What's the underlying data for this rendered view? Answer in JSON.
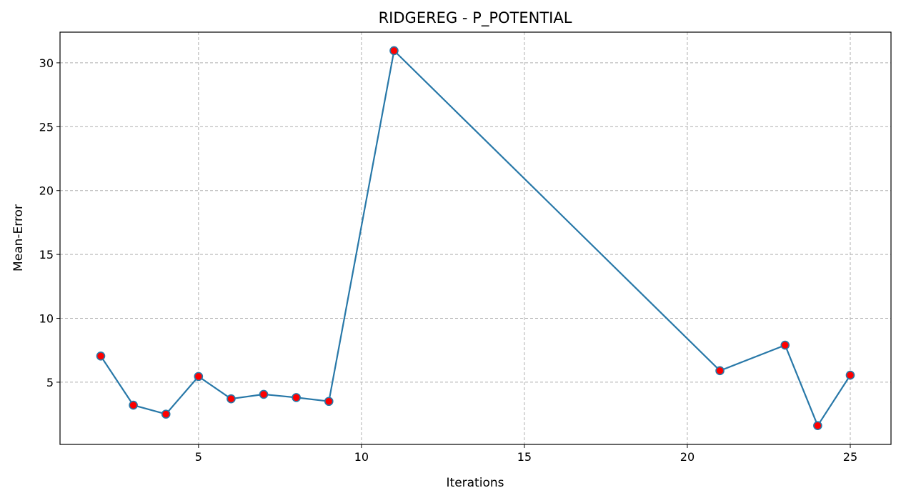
{
  "chart_data": {
    "type": "line",
    "title": "RIDGEREG - P_POTENTIAL",
    "xlabel": "Iterations",
    "ylabel": "Mean-Error",
    "xlim": [
      0.75,
      26.25
    ],
    "ylim": [
      0.13,
      32.4
    ],
    "x_ticks": [
      5,
      10,
      15,
      20,
      25
    ],
    "y_ticks": [
      5,
      10,
      15,
      20,
      25,
      30
    ],
    "x_tick_labels": [
      "5",
      "10",
      "15",
      "20",
      "25"
    ],
    "y_tick_labels": [
      "5",
      "10",
      "15",
      "20",
      "25",
      "30"
    ],
    "grid": true,
    "line_color": "#2878a8",
    "marker_fill": "#ff0000",
    "marker_edge": "#2878a8",
    "series": [
      {
        "x": [
          2,
          3,
          4,
          5,
          6,
          7,
          8,
          9,
          11,
          21,
          23,
          24,
          25
        ],
        "values": [
          7.05,
          3.2,
          2.5,
          5.45,
          3.7,
          4.05,
          3.8,
          3.5,
          30.95,
          5.9,
          7.9,
          1.6,
          5.55
        ]
      }
    ]
  }
}
